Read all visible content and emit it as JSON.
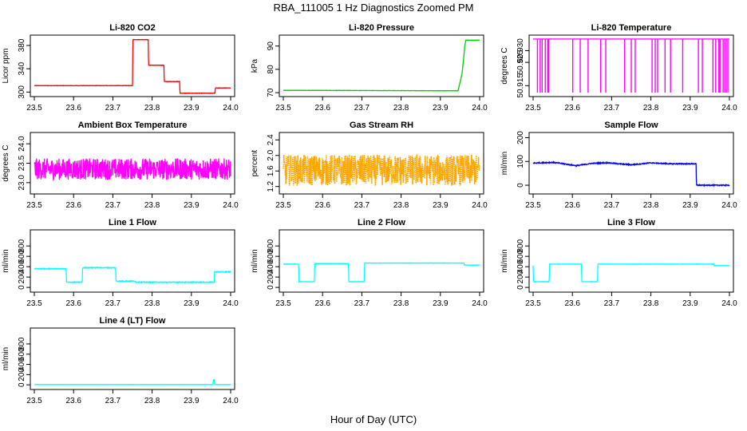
{
  "figure": {
    "title": "RBA_111005  1 Hz Diagnostics Zoomed PM",
    "xlabel": "Hour of Day (UTC)"
  },
  "chart_data": [
    {
      "type": "line",
      "title": "Li-820 CO2",
      "ylabel": "Licor ppm",
      "color": "#ff0000",
      "xlim": [
        23.5,
        24.0
      ],
      "ylim": [
        295,
        395
      ],
      "xticks": [
        "23.5",
        "23.6",
        "23.7",
        "23.8",
        "23.9",
        "24.0"
      ],
      "yticks": [
        "300",
        "340",
        "380"
      ],
      "x": [
        23.5,
        23.75,
        23.751,
        23.79,
        23.791,
        23.83,
        23.831,
        23.87,
        23.871,
        23.96,
        23.961,
        24.0
      ],
      "y": [
        311,
        311,
        390,
        390,
        346,
        346,
        318,
        318,
        298,
        298,
        307,
        307
      ],
      "noise": 0.6
    },
    {
      "type": "line",
      "title": "Li-820 Pressure",
      "ylabel": "kPa",
      "color": "#00cc00",
      "xlim": [
        23.5,
        24.0
      ],
      "ylim": [
        69,
        94
      ],
      "xticks": [
        "23.5",
        "23.6",
        "23.7",
        "23.8",
        "23.9",
        "24.0"
      ],
      "yticks": [
        "70",
        "80",
        "90"
      ],
      "x": [
        23.5,
        23.945,
        23.955,
        23.96,
        23.962,
        23.965,
        24.0
      ],
      "y": [
        71,
        70.8,
        78,
        86,
        90,
        92.5,
        92.5
      ],
      "noise": 0.1
    },
    {
      "type": "line",
      "title": "Li-820 Temperature",
      "ylabel": "degrees C",
      "color": "#ff00ff",
      "xlim": [
        23.5,
        24.0
      ],
      "ylim": [
        50.911,
        50.936
      ],
      "xticks": [
        "23.5",
        "23.6",
        "23.7",
        "23.8",
        "23.9",
        "24.0"
      ],
      "yticks": [
        "50.915",
        "50.925",
        "50.930"
      ],
      "x": [
        23.5,
        24.0
      ],
      "y": [
        50.935,
        50.935
      ],
      "spikes": [
        23.511,
        23.518,
        23.523,
        23.531,
        23.537,
        23.54,
        23.601,
        23.62,
        23.64,
        23.672,
        23.685,
        23.733,
        23.75,
        23.76,
        23.803,
        23.811,
        23.817,
        23.836,
        23.85,
        23.881,
        23.921,
        23.931,
        23.958,
        23.965,
        23.973,
        23.976,
        23.984,
        23.988,
        23.992,
        23.996
      ],
      "spike_low": 50.912
    },
    {
      "type": "line",
      "title": "Ambient Box Temperature",
      "ylabel": "degrees C",
      "color": "#ff00ff",
      "xlim": [
        23.5,
        24.0
      ],
      "ylim": [
        22.75,
        24.25
      ],
      "xticks": [
        "23.5",
        "23.6",
        "23.7",
        "23.8",
        "23.9",
        "24.0"
      ],
      "yticks": [
        "23.0",
        "23.5",
        "24.0"
      ],
      "x": [
        23.5,
        24.0
      ],
      "y": [
        23.35,
        23.35
      ],
      "noise": 0.55
    },
    {
      "type": "line",
      "title": "Gas Stream RH",
      "ylabel": "percent",
      "color": "#ffa500",
      "dots": true,
      "xlim": [
        23.5,
        24.0
      ],
      "ylim": [
        1.05,
        2.55
      ],
      "xticks": [
        "23.5",
        "23.6",
        "23.7",
        "23.8",
        "23.9",
        "24.0"
      ],
      "yticks": [
        "1.2",
        "1.6",
        "2.0",
        "2.4"
      ],
      "x": [
        23.5,
        24.0
      ],
      "y": [
        1.62,
        1.62
      ],
      "noise": 0.8
    },
    {
      "type": "line",
      "title": "Sample Flow",
      "ylabel": "ml/min",
      "color": "#0000ff",
      "xlim": [
        23.5,
        24.0
      ],
      "ylim": [
        -30,
        215
      ],
      "xticks": [
        "23.5",
        "23.6",
        "23.7",
        "23.8",
        "23.9",
        "24.0"
      ],
      "yticks": [
        "0",
        "100",
        "200"
      ],
      "x": [
        23.5,
        23.55,
        23.57,
        23.61,
        23.65,
        23.69,
        23.75,
        23.8,
        23.85,
        23.915,
        23.916,
        24.0
      ],
      "y": [
        93,
        96,
        92,
        82,
        92,
        94,
        86,
        94,
        90,
        90,
        0,
        0
      ],
      "noise": 4
    },
    {
      "type": "line",
      "title": "Line 1 Flow",
      "ylabel": "ml/min",
      "color": "#00ffff",
      "xlim": [
        23.5,
        24.0
      ],
      "ylim": [
        -60,
        1080
      ],
      "xticks": [
        "23.5",
        "23.6",
        "23.7",
        "23.8",
        "23.9",
        "24.0"
      ],
      "yticks": [
        "0",
        "200",
        "400",
        "600",
        "800"
      ],
      "x": [
        23.5,
        23.581,
        23.582,
        23.622,
        23.623,
        23.707,
        23.708,
        23.757,
        23.758,
        23.958,
        23.959,
        24.0
      ],
      "y": [
        360,
        360,
        100,
        100,
        380,
        380,
        120,
        120,
        100,
        100,
        300,
        300
      ],
      "noise": 15
    },
    {
      "type": "line",
      "title": "Line 2 Flow",
      "ylabel": "ml/min",
      "color": "#00ffff",
      "xlim": [
        23.5,
        24.0
      ],
      "ylim": [
        -60,
        1080
      ],
      "xticks": [
        "23.5",
        "23.6",
        "23.7",
        "23.8",
        "23.9",
        "24.0"
      ],
      "yticks": [
        "0",
        "200",
        "400",
        "600",
        "800"
      ],
      "x": [
        23.5,
        23.539,
        23.54,
        23.579,
        23.58,
        23.666,
        23.667,
        23.706,
        23.707,
        23.96,
        23.961,
        24.0
      ],
      "y": [
        450,
        450,
        110,
        110,
        460,
        460,
        110,
        110,
        470,
        470,
        430,
        430
      ],
      "noise": 5
    },
    {
      "type": "line",
      "title": "Line 3 Flow",
      "ylabel": "ml/min",
      "color": "#00ffff",
      "xlim": [
        23.5,
        24.0
      ],
      "ylim": [
        -60,
        1080
      ],
      "xticks": [
        "23.5",
        "23.6",
        "23.7",
        "23.8",
        "23.9",
        "24.0"
      ],
      "yticks": [
        "0",
        "200",
        "400",
        "600",
        "800"
      ],
      "x": [
        23.5,
        23.501,
        23.541,
        23.542,
        23.623,
        23.624,
        23.664,
        23.665,
        23.96,
        23.961,
        24.0
      ],
      "y": [
        420,
        110,
        110,
        450,
        450,
        110,
        110,
        450,
        450,
        420,
        420
      ],
      "noise": 5
    },
    {
      "type": "line",
      "title": "Line 4 (LT) Flow",
      "ylabel": "ml/min",
      "color": "#00ffff",
      "xlim": [
        23.5,
        24.0
      ],
      "ylim": [
        -60,
        1080
      ],
      "xticks": [
        "23.5",
        "23.6",
        "23.7",
        "23.8",
        "23.9",
        "24.0"
      ],
      "yticks": [
        "0",
        "200",
        "400",
        "600",
        "800"
      ],
      "x": [
        23.5,
        23.955,
        23.956,
        23.958,
        23.959,
        24.0
      ],
      "y": [
        5,
        5,
        100,
        100,
        5,
        5
      ],
      "noise": 2
    }
  ]
}
